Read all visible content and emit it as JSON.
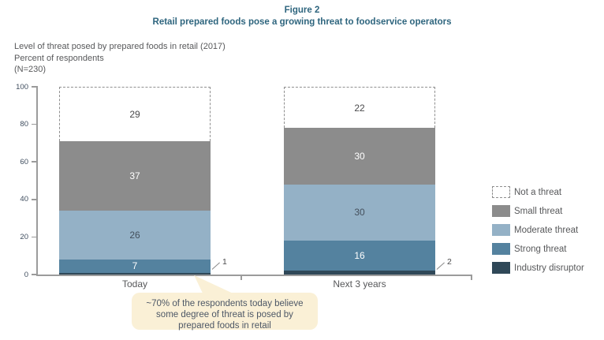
{
  "figure": {
    "label": "Figure 2",
    "title": "Retail prepared foods pose a growing threat to foodservice operators"
  },
  "meta": {
    "lines": [
      "Level of threat posed by prepared foods in retail (2017)",
      "Percent of respondents",
      "(N=230)"
    ]
  },
  "chart_data": {
    "type": "bar",
    "stacked": true,
    "title": "Retail prepared foods pose a growing threat to foodservice operators",
    "subtitle": "Level of threat posed by prepared foods in retail (2017), Percent of respondents (N=230)",
    "categories": [
      "Today",
      "Next 3 years"
    ],
    "series": [
      {
        "name": "Industry disruptor",
        "values": [
          1,
          2
        ],
        "color": "#2f4858",
        "label_color": "#4b4b4d",
        "label_outside": true
      },
      {
        "name": "Strong threat",
        "values": [
          7,
          16
        ],
        "color": "#54829f",
        "label_color": "#ffffff"
      },
      {
        "name": "Moderate threat",
        "values": [
          26,
          30
        ],
        "color": "#94b1c6",
        "label_color": "#44505c"
      },
      {
        "name": "Small threat",
        "values": [
          37,
          30
        ],
        "color": "#8c8c8c",
        "label_color": "#ffffff"
      },
      {
        "name": "Not a threat",
        "values": [
          29,
          22
        ],
        "color": "#ffffff",
        "label_color": "#4b4b4d",
        "dashed": true
      }
    ],
    "ylim": [
      0,
      100
    ],
    "yticks": [
      0,
      20,
      40,
      60,
      80,
      100
    ],
    "grid": false,
    "legend_position": "right",
    "legend_order_top_to_bottom": [
      "Not a threat",
      "Small threat",
      "Moderate threat",
      "Strong threat",
      "Industry disruptor"
    ]
  },
  "annotation": {
    "text": "~70% of the respondents today believe\nsome degree of threat is posed by\nprepared foods in retail"
  },
  "colors": {
    "accent_teal": "#2e657e",
    "axis": "#9b9b9b",
    "body_text": "#58595b",
    "callout_bg": "#faf0d6"
  }
}
